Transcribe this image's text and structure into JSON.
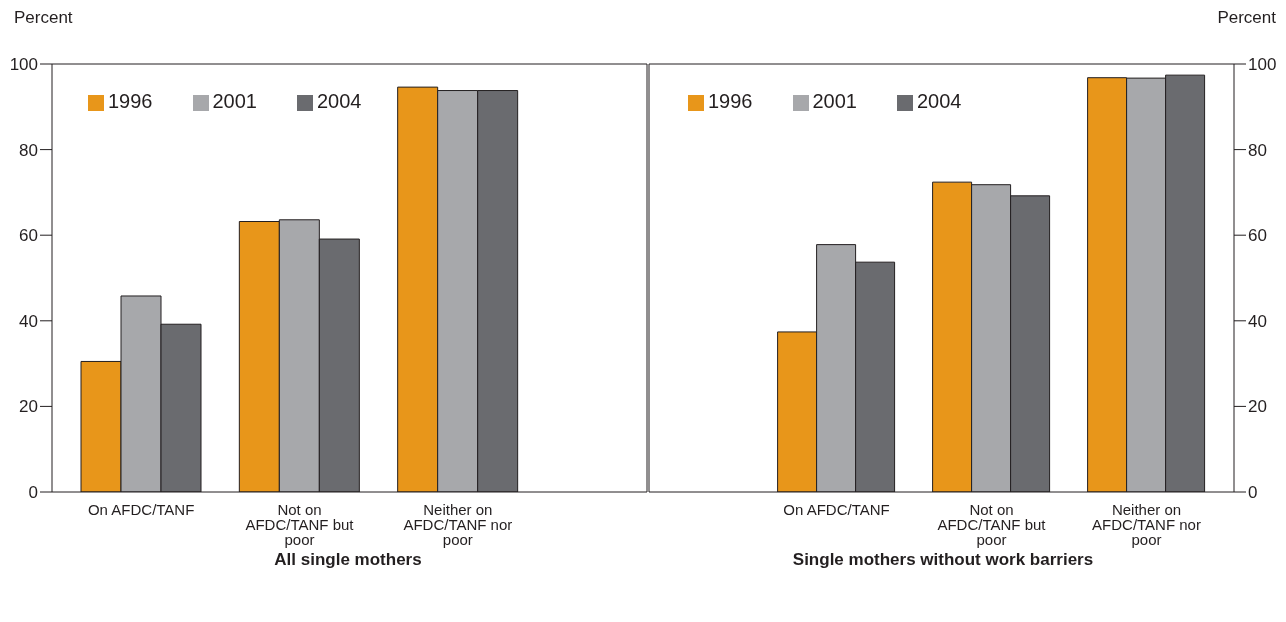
{
  "chart_data": [
    {
      "type": "bar",
      "xlabel": "All single mothers",
      "ylabel": "Percent",
      "categories": [
        "On AFDC/TANF",
        "Not on AFDC/TANF but poor",
        "Neither on AFDC/TANF nor poor"
      ],
      "series": [
        {
          "name": "1996",
          "color": "#e8961a",
          "values": [
            30.5,
            63.2,
            94.6
          ]
        },
        {
          "name": "2001",
          "color": "#a7a8ab",
          "values": [
            45.8,
            63.6,
            93.8
          ]
        },
        {
          "name": "2004",
          "color": "#6a6b6f",
          "values": [
            39.2,
            59.1,
            93.8
          ]
        }
      ],
      "ylim": [
        0,
        100
      ],
      "yticks": [
        0,
        20,
        40,
        60,
        80,
        100
      ],
      "grid": false,
      "legend": "top left"
    },
    {
      "type": "bar",
      "xlabel": "Single mothers without work barriers",
      "ylabel": "Percent",
      "categories": [
        "On AFDC/TANF",
        "Not on AFDC/TANF but poor",
        "Neither on AFDC/TANF nor poor"
      ],
      "series": [
        {
          "name": "1996",
          "color": "#e8961a",
          "values": [
            37.4,
            72.4,
            96.8
          ]
        },
        {
          "name": "2001",
          "color": "#a7a8ab",
          "values": [
            57.8,
            71.8,
            96.7
          ]
        },
        {
          "name": "2004",
          "color": "#6a6b6f",
          "values": [
            53.7,
            69.2,
            97.4
          ]
        }
      ],
      "ylim": [
        0,
        100
      ],
      "yticks": [
        0,
        20,
        40,
        60,
        80,
        100
      ],
      "grid": false,
      "legend": "top left"
    }
  ]
}
